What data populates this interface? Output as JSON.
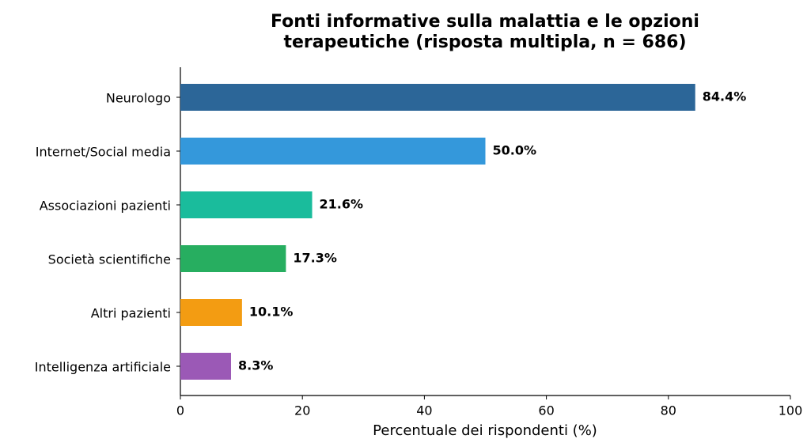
{
  "chart_data": {
    "type": "barh",
    "title": [
      "Fonti informative sulla malattia e le opzioni",
      "terapeutiche (risposta multipla, n = 686)"
    ],
    "xlabel": "Percentuale dei rispondenti (%)",
    "categories": [
      "Neurologo",
      "Internet/Social media",
      "Associazioni pazienti",
      "Società scientifiche",
      "Altri pazienti",
      "Intelligenza artificiale"
    ],
    "values": [
      84.4,
      50.0,
      21.6,
      17.3,
      10.1,
      8.3
    ],
    "value_labels": [
      "84.4%",
      "50.0%",
      "21.6%",
      "17.3%",
      "10.1%",
      "8.3%"
    ],
    "colors": [
      "#2c6698",
      "#3498db",
      "#1abc9c",
      "#27ae60",
      "#f39c12",
      "#9b59b6"
    ],
    "xlim": [
      0,
      100
    ],
    "xticks": [
      0,
      20,
      40,
      60,
      80,
      100
    ],
    "grid": false
  }
}
